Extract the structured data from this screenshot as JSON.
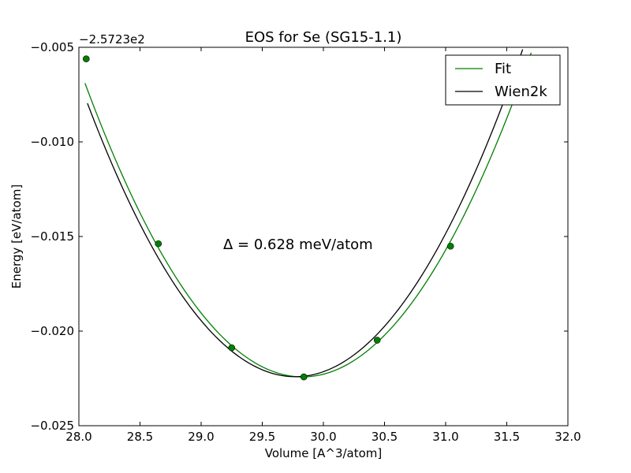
{
  "chart_data": {
    "type": "line",
    "title": "EOS for Se (SG15-1.1)",
    "xlabel": "Volume [A^3/atom]",
    "ylabel": "Energy [eV/atom]",
    "y_offset_text": "−2.5723e2",
    "xlim": [
      28.0,
      32.0
    ],
    "ylim": [
      -0.025,
      -0.005
    ],
    "x_ticks": [
      28.0,
      28.5,
      29.0,
      29.5,
      30.0,
      30.5,
      31.0,
      31.5,
      32.0
    ],
    "x_tick_labels": [
      "28.0",
      "28.5",
      "29.0",
      "29.5",
      "30.0",
      "30.5",
      "31.0",
      "31.5",
      "32.0"
    ],
    "y_ticks": [
      -0.025,
      -0.02,
      -0.015,
      -0.01,
      -0.005
    ],
    "y_tick_labels": [
      "−0.025",
      "−0.020",
      "−0.015",
      "−0.010",
      "−0.005"
    ],
    "grid": false,
    "legend_position": "top-right",
    "annotation": "Δ = 0.628 meV/atom",
    "series": [
      {
        "name": "Fit",
        "color": "#008000",
        "model": "parabola",
        "min_x": 29.83,
        "min_y": -0.02242,
        "curvature": 0.0049,
        "x_range": [
          28.05,
          31.7
        ]
      },
      {
        "name": "Wien2k",
        "color": "#000000",
        "model": "parabola",
        "min_x": 29.77,
        "min_y": -0.02241,
        "curvature": 0.005,
        "x_range": [
          28.07,
          31.66
        ]
      }
    ],
    "points": {
      "color": "#008000",
      "x": [
        28.06,
        28.65,
        29.25,
        29.84,
        30.44,
        31.04
      ],
      "y": [
        -0.00561,
        -0.01538,
        -0.02088,
        -0.02242,
        -0.02048,
        -0.01551
      ]
    }
  }
}
